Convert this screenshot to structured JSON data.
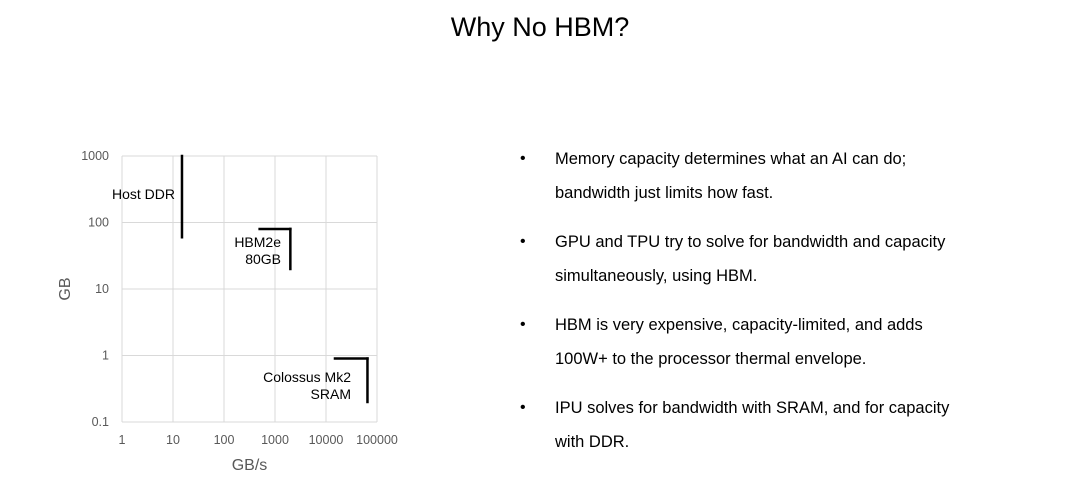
{
  "title": "Why No HBM?",
  "chart_data": {
    "type": "scatter",
    "xlabel": "GB/s",
    "ylabel": "GB",
    "x_scale": "log",
    "y_scale": "log",
    "xlim": [
      1,
      100000
    ],
    "ylim": [
      0.1,
      1000
    ],
    "x_ticks": [
      "1",
      "10",
      "100",
      "1000",
      "10000",
      "100000"
    ],
    "y_ticks": [
      "0.1",
      "1",
      "10",
      "100",
      "1000"
    ],
    "grid": true,
    "series": [
      {
        "name": "Host DDR",
        "label_lines": [
          "Host DDR"
        ],
        "segments": [
          {
            "x": [
              15,
              15
            ],
            "y": [
              60,
              1000
            ]
          }
        ]
      },
      {
        "name": "HBM2e 80GB",
        "label_lines": [
          "HBM2e",
          "80GB"
        ],
        "segments": [
          {
            "x": [
              500,
              2000
            ],
            "y": [
              80,
              80
            ]
          },
          {
            "x": [
              2000,
              2000
            ],
            "y": [
              80,
              20
            ]
          }
        ]
      },
      {
        "name": "Colossus Mk2 SRAM",
        "label_lines": [
          "Colossus Mk2",
          "SRAM"
        ],
        "segments": [
          {
            "x": [
              15000,
              65000
            ],
            "y": [
              0.9,
              0.9
            ]
          },
          {
            "x": [
              65000,
              65000
            ],
            "y": [
              0.9,
              0.2
            ]
          }
        ]
      }
    ],
    "colors": {
      "line": "#000000",
      "grid": "#d9d9d9",
      "axis_text": "#595959"
    }
  },
  "bullets": [
    {
      "line1": "Memory capacity determines what an AI can do;",
      "line2": "bandwidth just limits how fast."
    },
    {
      "line1": "GPU and TPU try to solve for bandwidth and capacity",
      "line2": "simultaneously, using HBM."
    },
    {
      "line1": "HBM is very expensive, capacity-limited, and adds",
      "line2": "100W+ to the processor thermal envelope."
    },
    {
      "line1": "IPU solves for bandwidth with SRAM, and for capacity",
      "line2": "with DDR."
    }
  ],
  "bullet_symbol": "•"
}
